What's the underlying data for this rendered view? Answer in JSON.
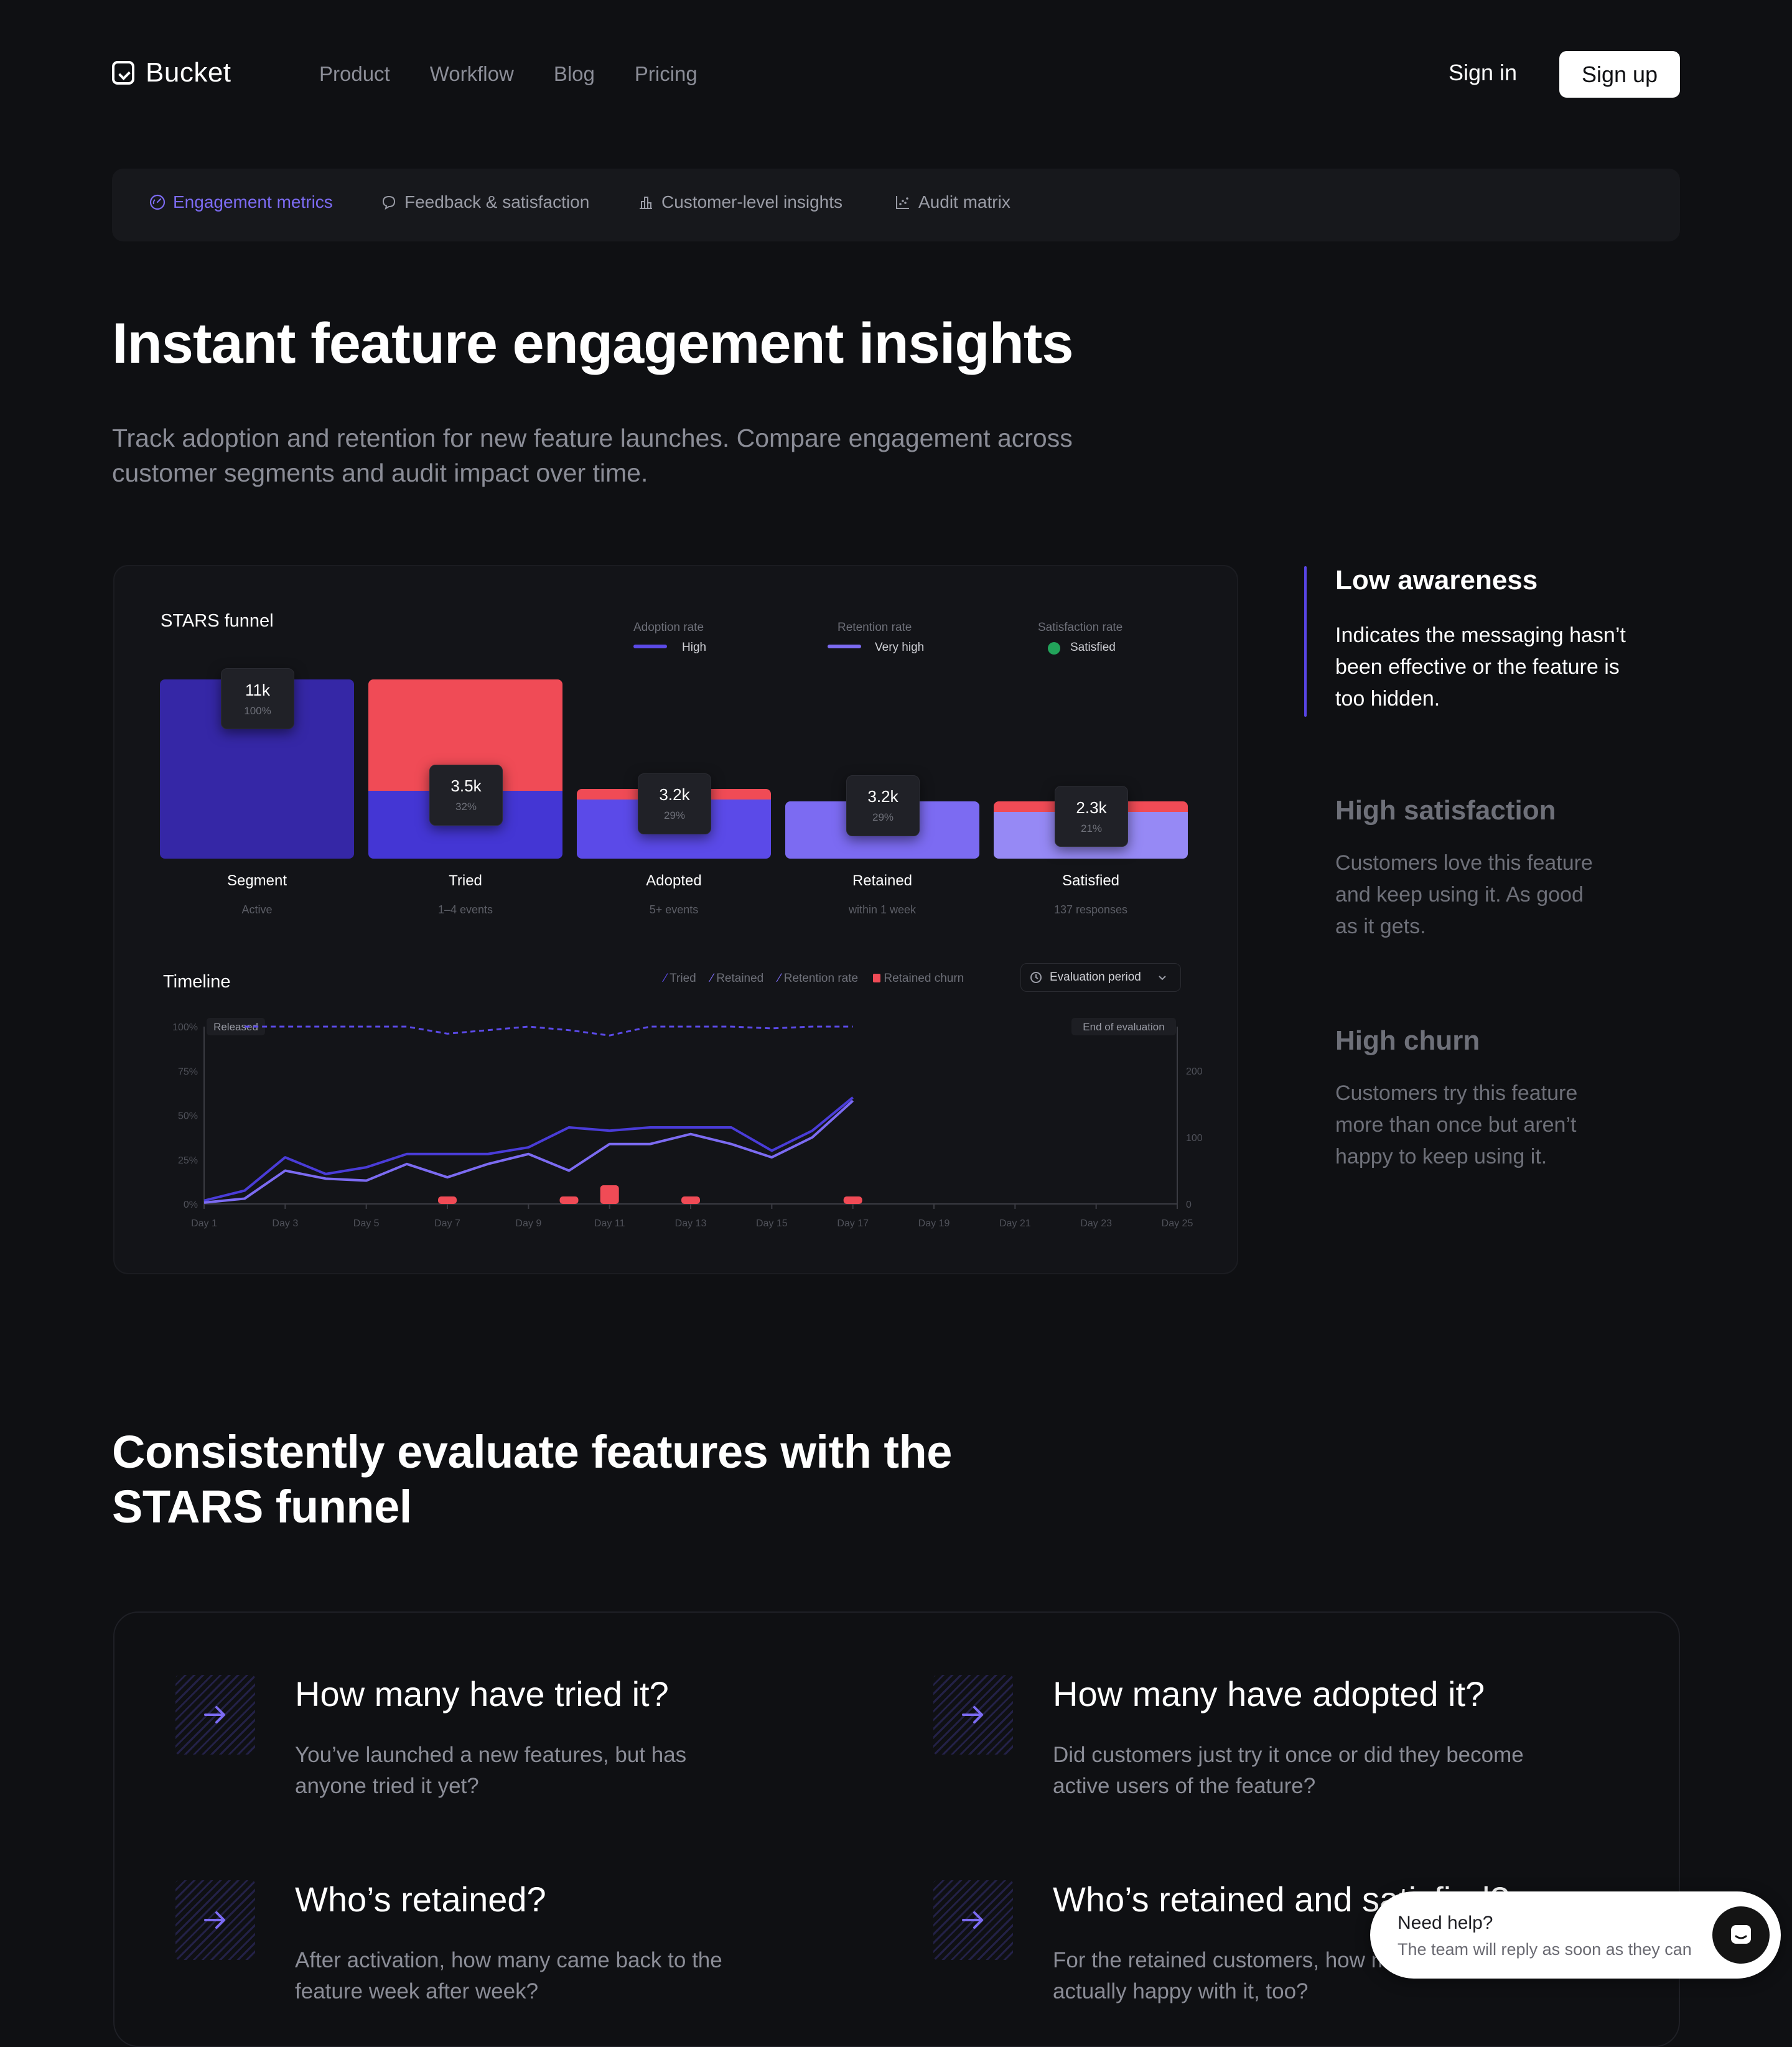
{
  "header": {
    "logo": "Bucket",
    "nav": [
      "Product",
      "Workflow",
      "Blog",
      "Pricing"
    ],
    "signin": "Sign in",
    "signup": "Sign up"
  },
  "tabs": [
    {
      "label": "Engagement metrics",
      "icon": "gauge-icon",
      "active": true
    },
    {
      "label": "Feedback & satisfaction",
      "icon": "chat-bubble-icon",
      "active": false
    },
    {
      "label": "Customer-level insights",
      "icon": "bar-chart-icon",
      "active": false
    },
    {
      "label": "Audit matrix",
      "icon": "scatter-icon",
      "active": false
    }
  ],
  "hero": {
    "title": "Instant feature engagement insights",
    "subtitle": "Track adoption and retention for new feature launches. Compare engagement across customer segments and audit impact over time."
  },
  "funnel": {
    "title": "STARS funnel",
    "rates": [
      {
        "label": "Adoption rate",
        "value": "High"
      },
      {
        "label": "Retention rate",
        "value": "Very high"
      },
      {
        "label": "Satisfaction rate",
        "value": "Satisfied"
      }
    ],
    "stages": [
      {
        "name": "Segment",
        "value": "11k",
        "pct": "100%",
        "sub": "Active",
        "fill": 1.0,
        "red": 0
      },
      {
        "name": "Tried",
        "value": "3.5k",
        "pct": "32%",
        "sub": "1–4 events",
        "fill": 0.38,
        "red": 0.62
      },
      {
        "name": "Adopted",
        "value": "3.2k",
        "pct": "29%",
        "sub": "5+ events",
        "fill": 0.33,
        "red": 0.06
      },
      {
        "name": "Retained",
        "value": "3.2k",
        "pct": "29%",
        "sub": "within 1 week",
        "fill": 0.32,
        "red": 0
      },
      {
        "name": "Satisfied",
        "value": "2.3k",
        "pct": "21%",
        "sub": "137 responses",
        "fill": 0.26,
        "red": 0.06
      }
    ]
  },
  "timeline": {
    "title": "Timeline",
    "legend": [
      "Tried",
      "Retained",
      "Retention rate",
      "Retained churn"
    ],
    "period_label": "Evaluation period",
    "released_label": "Released",
    "end_label": "End of evaluation",
    "y_left_ticks": [
      "100%",
      "75%",
      "50%",
      "25%",
      "0%"
    ],
    "y_right_ticks": [
      "200",
      "100",
      "0"
    ],
    "x_ticks": [
      "Day 1",
      "Day 3",
      "Day 5",
      "Day 7",
      "Day 9",
      "Day 11",
      "Day 13",
      "Day 15",
      "Day 17",
      "Day 19",
      "Day 21",
      "Day 23",
      "Day 25"
    ]
  },
  "chart_data": {
    "type": "line",
    "title": "Timeline",
    "x": [
      1,
      2,
      3,
      4,
      5,
      6,
      7,
      8,
      9,
      10,
      11,
      12,
      13,
      14,
      15,
      16,
      17
    ],
    "series": [
      {
        "name": "Tried",
        "values": [
          5,
          20,
          70,
          45,
          55,
          75,
          75,
          75,
          85,
          115,
          110,
          115,
          115,
          115,
          80,
          110,
          160
        ]
      },
      {
        "name": "Retained",
        "values": [
          2,
          8,
          50,
          38,
          35,
          60,
          40,
          60,
          75,
          50,
          90,
          90,
          105,
          90,
          70,
          100,
          155
        ]
      },
      {
        "name": "Retention rate",
        "values": [
          100,
          100,
          100,
          100,
          100,
          100,
          96,
          98,
          100,
          98,
          95,
          100,
          100,
          100,
          99,
          100,
          100
        ]
      },
      {
        "name": "Retained churn",
        "values": [
          0,
          0,
          0,
          0,
          0,
          0,
          12,
          0,
          0,
          12,
          30,
          0,
          12,
          0,
          0,
          0,
          12
        ]
      }
    ],
    "ylim_left": [
      0,
      100
    ],
    "ylim_right": [
      0,
      200
    ],
    "xlim": [
      1,
      25
    ]
  },
  "insights": [
    {
      "title": "Low awareness",
      "body": "Indicates the messaging hasn’t been effective or the feature is too hidden.",
      "active": true
    },
    {
      "title": "High satisfaction",
      "body": "Customers love this feature and keep using it. As good as it gets.",
      "active": false
    },
    {
      "title": "High churn",
      "body": "Customers try this feature more than once but aren’t happy to keep using it.",
      "active": false
    }
  ],
  "section2": {
    "title": "Consistently evaluate features with the STARS funnel",
    "questions": [
      {
        "title": "How many have tried it?",
        "body": "You’ve launched a new features, but has anyone tried it yet?"
      },
      {
        "title": "How many have adopted it?",
        "body": "Did customers just try it once or did they become active users of the feature?"
      },
      {
        "title": "Who’s retained?",
        "body": "After activation, how many came back to the feature week after week?"
      },
      {
        "title": "Who’s retained and satisfied?",
        "body": "For the retained customers, how many are actually happy with it, too?"
      }
    ]
  },
  "chat": {
    "title": "Need help?",
    "body": "The team will reply as soon as they can"
  },
  "colors": {
    "accent": "#5b4ae8",
    "accent_light": "#7c6bf2",
    "red": "#f04b56",
    "segment": "#3527a6"
  }
}
